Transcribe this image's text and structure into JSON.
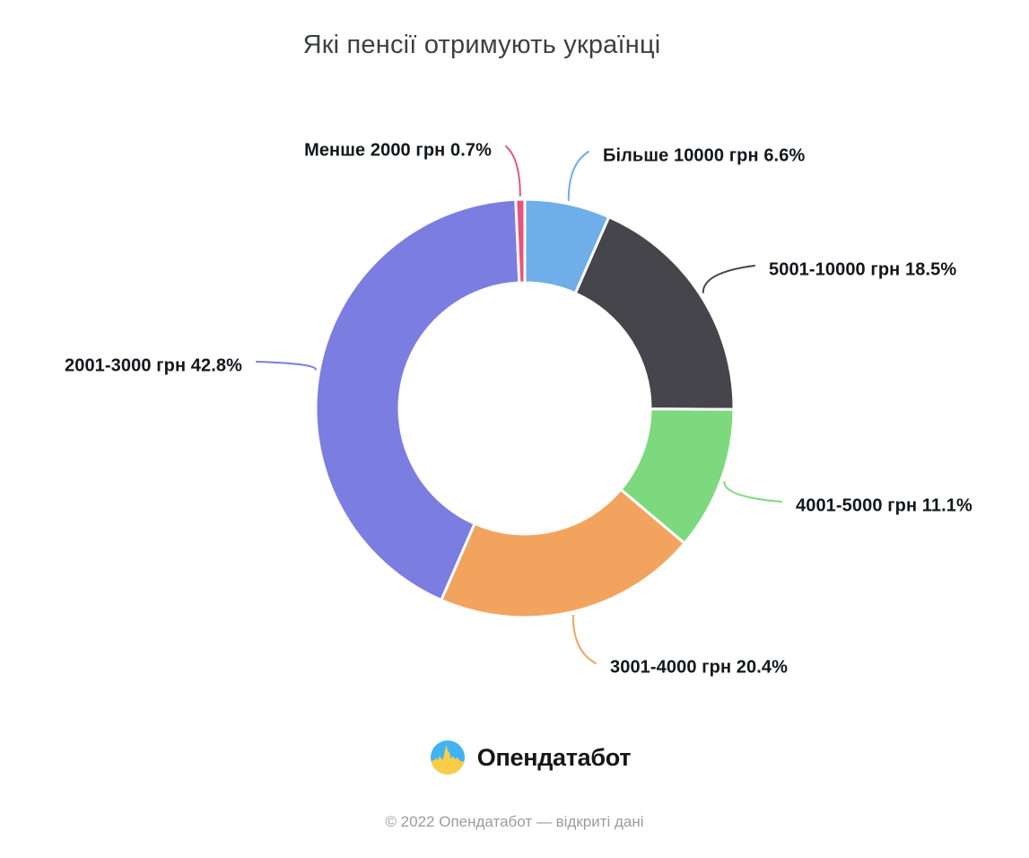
{
  "title": "Які пенсії отримують українці",
  "chart_data": {
    "type": "pie",
    "subtype": "donut",
    "title": "Які пенсії отримують українці",
    "direction": "clockwise",
    "start_angle_deg": 0,
    "legend_position": "none",
    "label_format": "{label} {value}%",
    "segments": [
      {
        "label": "Більше 10000 грн",
        "value": 6.6,
        "color": "#6FAEE8"
      },
      {
        "label": "5001-10000 грн",
        "value": 18.5,
        "color": "#45454B"
      },
      {
        "label": "4001-5000 грн",
        "value": 11.1,
        "color": "#7CD97D"
      },
      {
        "label": "3001-4000 грн",
        "value": 20.4,
        "color": "#F2A45F"
      },
      {
        "label": "2001-3000 грн",
        "value": 42.8,
        "color": "#7B7DE0"
      },
      {
        "label": "Менше 2000 грн",
        "value": 0.7,
        "color": "#E8547E"
      }
    ]
  },
  "footer": {
    "brand": "Опендатабот",
    "copyright": "© 2022 Опендатабот — відкриті дані"
  },
  "logo": {
    "name": "opendatabot-logo",
    "flag_blue": "#41B3F4",
    "flag_yellow": "#F7CE46"
  }
}
